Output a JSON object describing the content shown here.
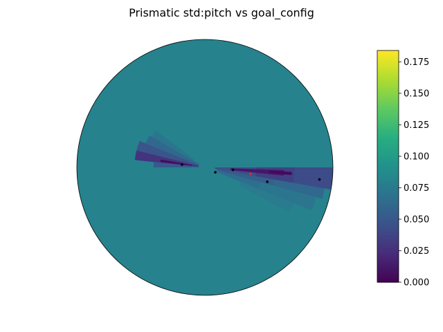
{
  "chart_data": {
    "type": "heatmap",
    "projection": "polar",
    "title": "Prismatic std:pitch vs goal_config",
    "xlabel": "",
    "ylabel": "",
    "colormap": "viridis",
    "background_value": 0.081,
    "colorbar": {
      "range": [
        0.0,
        0.184
      ],
      "ticks": [
        "0.000",
        "0.025",
        "0.050",
        "0.075",
        "0.100",
        "0.125",
        "0.150",
        "0.175"
      ],
      "placement": "right"
    },
    "cells": [
      {
        "theta_deg": [
          -10,
          0
        ],
        "r": [
          0.7,
          1.0
        ],
        "value": 0.042
      },
      {
        "theta_deg": [
          -10,
          0
        ],
        "r": [
          0.4,
          0.7
        ],
        "value": 0.036
      },
      {
        "theta_deg": [
          -10,
          0
        ],
        "r": [
          0.08,
          0.4
        ],
        "value": 0.045
      },
      {
        "theta_deg": [
          -6,
          -2
        ],
        "r": [
          0.2,
          0.62
        ],
        "value": 0.012
      },
      {
        "theta_deg": [
          -5,
          -3
        ],
        "r": [
          0.5,
          0.68
        ],
        "value": 0.004
      },
      {
        "theta_deg": [
          -15,
          -10
        ],
        "r": [
          0.55,
          0.95
        ],
        "value": 0.062
      },
      {
        "theta_deg": [
          -15,
          -10
        ],
        "r": [
          0.1,
          0.55
        ],
        "value": 0.056
      },
      {
        "theta_deg": [
          -22,
          -15
        ],
        "r": [
          0.45,
          0.9
        ],
        "value": 0.072
      },
      {
        "theta_deg": [
          -22,
          -15
        ],
        "r": [
          0.1,
          0.45
        ],
        "value": 0.066
      },
      {
        "theta_deg": [
          -28,
          -22
        ],
        "r": [
          0.3,
          0.75
        ],
        "value": 0.076
      },
      {
        "theta_deg": [
          166,
          174
        ],
        "r": [
          0.05,
          0.55
        ],
        "value": 0.028
      },
      {
        "theta_deg": [
          170,
          173
        ],
        "r": [
          0.1,
          0.35
        ],
        "value": 0.005
      },
      {
        "theta_deg": [
          158,
          166
        ],
        "r": [
          0.05,
          0.55
        ],
        "value": 0.048
      },
      {
        "theta_deg": [
          150,
          158
        ],
        "r": [
          0.05,
          0.5
        ],
        "value": 0.062
      },
      {
        "theta_deg": [
          174,
          180
        ],
        "r": [
          0.05,
          0.4
        ],
        "value": 0.052
      },
      {
        "theta_deg": [
          143,
          150
        ],
        "r": [
          0.1,
          0.48
        ],
        "value": 0.072
      }
    ],
    "points": [
      {
        "theta_deg": 173,
        "r": 0.18,
        "color": "#000000"
      },
      {
        "theta_deg": -25,
        "r": 0.09,
        "color": "#000000"
      },
      {
        "theta_deg": -5,
        "r": 0.22,
        "color": "#000000"
      },
      {
        "theta_deg": -8,
        "r": 0.36,
        "color": "#cc3333"
      },
      {
        "theta_deg": -13,
        "r": 0.5,
        "color": "#000000"
      },
      {
        "theta_deg": -6,
        "r": 0.9,
        "color": "#000000"
      }
    ]
  }
}
